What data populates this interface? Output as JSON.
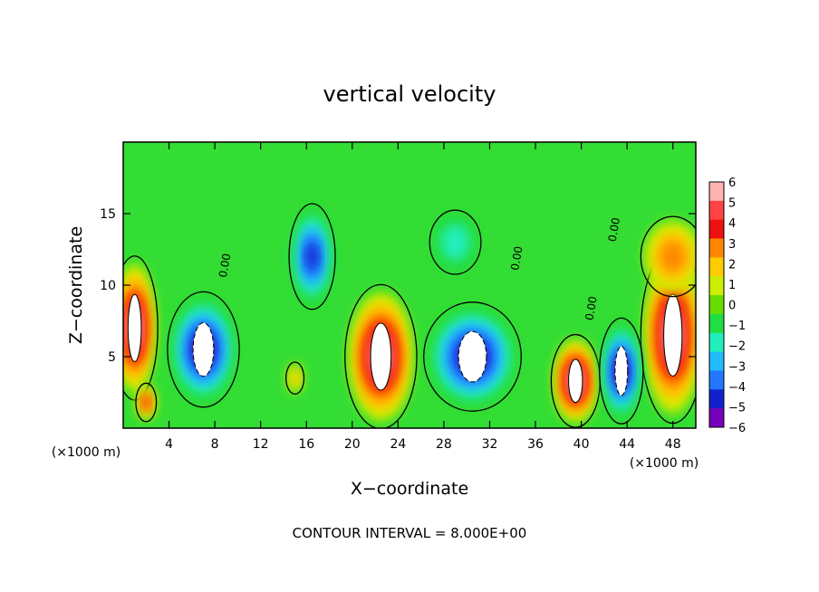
{
  "chart_data": {
    "type": "heatmap",
    "title": "vertical velocity",
    "xlabel": "X−coordinate",
    "ylabel": "Z−coordinate",
    "x_unit_left": "(×1000 m)",
    "x_unit_right": "(×1000 m)",
    "footer": "CONTOUR INTERVAL = 8.000E+00",
    "xlim": [
      0,
      50
    ],
    "ylim": [
      0,
      20
    ],
    "x_ticks": [
      4,
      8,
      12,
      16,
      20,
      24,
      28,
      32,
      36,
      40,
      44,
      48
    ],
    "x_tick_labels": [
      "4",
      "8",
      "12",
      "16",
      "20",
      "24",
      "28",
      "32",
      "36",
      "40",
      "44",
      "48"
    ],
    "y_ticks": [
      5,
      10,
      15
    ],
    "y_tick_labels": [
      "5",
      "10",
      "15"
    ],
    "colorbar": {
      "levels": [
        6,
        5,
        4,
        3,
        2,
        1,
        0,
        -1,
        -2,
        -3,
        -4,
        -5,
        -6
      ],
      "labels": [
        "6",
        "5",
        "4",
        "3",
        "2",
        "1",
        "0",
        "−1",
        "−2",
        "−3",
        "−4",
        "−5",
        "−6"
      ],
      "colors": [
        "#ffb3b3",
        "#ff4444",
        "#ee1111",
        "#ff8800",
        "#ffcc00",
        "#ccee00",
        "#66dd00",
        "#22dd44",
        "#22eebb",
        "#22bbff",
        "#2277ff",
        "#1122cc",
        "#7700bb"
      ]
    },
    "contour_label": "0.00",
    "features": [
      {
        "kind": "updraft",
        "x": 1,
        "z": 7,
        "rx": 1.8,
        "rz": 4.5,
        "level": 6
      },
      {
        "kind": "updraft",
        "x": 2,
        "z": 1.8,
        "rx": 0.8,
        "rz": 1.2,
        "level": 4
      },
      {
        "kind": "updraft",
        "x": 22.5,
        "z": 5.0,
        "rx": 2.8,
        "rz": 4.5,
        "level": 6
      },
      {
        "kind": "updraft",
        "x": 39.5,
        "z": 3.3,
        "rx": 1.9,
        "rz": 2.9,
        "level": 6
      },
      {
        "kind": "updraft",
        "x": 48,
        "z": 6.5,
        "rx": 2.5,
        "rz": 5.5,
        "level": 6
      },
      {
        "kind": "updraft",
        "x": 48,
        "z": 12,
        "rx": 2.5,
        "rz": 2.5,
        "level": 3
      },
      {
        "kind": "updraft",
        "x": 15,
        "z": 3.5,
        "rx": 0.7,
        "rz": 1.0,
        "level": 2
      },
      {
        "kind": "downdraft",
        "x": 7,
        "z": 5.5,
        "rx": 2.8,
        "rz": 3.6,
        "level": -6
      },
      {
        "kind": "downdraft",
        "x": 16.5,
        "z": 12,
        "rx": 1.8,
        "rz": 3.3,
        "level": -5
      },
      {
        "kind": "downdraft",
        "x": 30.5,
        "z": 5.0,
        "rx": 3.8,
        "rz": 3.4,
        "level": -6
      },
      {
        "kind": "downdraft",
        "x": 43.5,
        "z": 4.0,
        "rx": 1.7,
        "rz": 3.3,
        "level": -6
      },
      {
        "kind": "downdraft",
        "x": 29,
        "z": 13,
        "rx": 2.0,
        "rz": 2.0,
        "level": -2
      }
    ]
  }
}
